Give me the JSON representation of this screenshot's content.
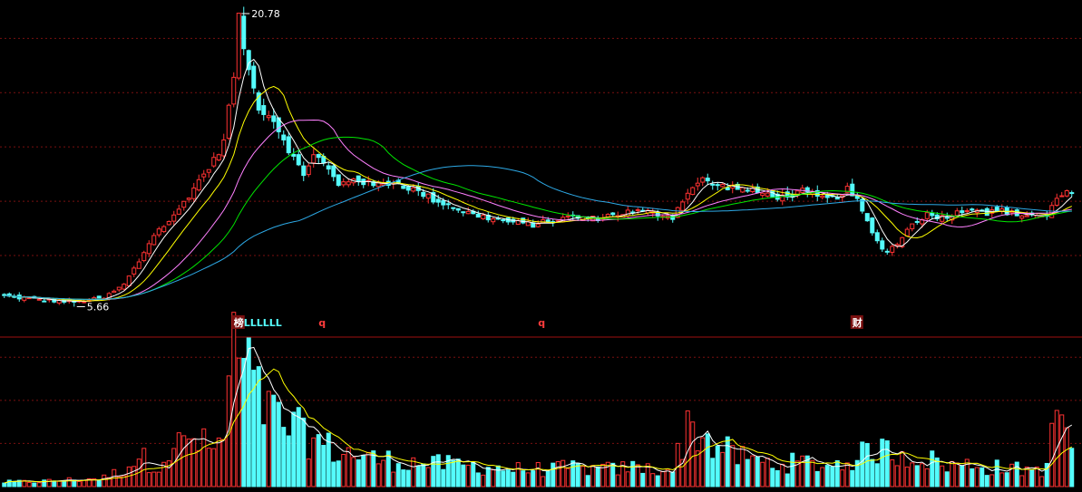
{
  "chart_data": {
    "type": "candlestick",
    "colors": {
      "background": "#000000",
      "up": "#ff3232",
      "down": "#54fcfc",
      "grid": "#7a1010",
      "separator": "#a01010",
      "ma_colors": [
        "#ffffff",
        "#ffff00",
        "#ff80ff",
        "#00e600",
        "#2da9e6"
      ],
      "marker_box": "#7a1010",
      "marker_text_red": "#ff3c3c",
      "marker_text_cyan": "#54fcfc"
    },
    "price_annotations": [
      {
        "label": "20.78",
        "value": 20.78,
        "index": 47
      },
      {
        "label": "5.66",
        "value": 5.66,
        "index": 14
      }
    ],
    "markers": [
      {
        "text": "榜",
        "index": 46,
        "boxed": true,
        "color": "red"
      },
      {
        "text": "LLLLLL",
        "index": 48,
        "boxed": false,
        "color": "cyan"
      },
      {
        "text": "q",
        "index": 63,
        "boxed": false,
        "color": "red"
      },
      {
        "text": "q",
        "index": 107,
        "boxed": false,
        "color": "red"
      },
      {
        "text": "财",
        "index": 170,
        "boxed": true,
        "color": "red"
      }
    ],
    "keypoints": [
      [
        0,
        6.2,
        5
      ],
      [
        8,
        6.0,
        6
      ],
      [
        14,
        5.9,
        8
      ],
      [
        20,
        6.1,
        10
      ],
      [
        24,
        6.8,
        20
      ],
      [
        27,
        8.0,
        35
      ],
      [
        30,
        9.4,
        25
      ],
      [
        34,
        10.3,
        45
      ],
      [
        38,
        11.8,
        55
      ],
      [
        42,
        13.2,
        40
      ],
      [
        44,
        14.2,
        60
      ],
      [
        46,
        17.6,
        160
      ],
      [
        47,
        20.5,
        150
      ],
      [
        49,
        17.8,
        130
      ],
      [
        51,
        16.0,
        100
      ],
      [
        54,
        15.3,
        80
      ],
      [
        57,
        13.8,
        70
      ],
      [
        60,
        12.4,
        60
      ],
      [
        62,
        13.6,
        55
      ],
      [
        65,
        12.7,
        45
      ],
      [
        67,
        11.9,
        40
      ],
      [
        70,
        12.3,
        38
      ],
      [
        74,
        11.9,
        32
      ],
      [
        78,
        12.1,
        30
      ],
      [
        82,
        11.7,
        28
      ],
      [
        86,
        11.2,
        26
      ],
      [
        90,
        10.8,
        25
      ],
      [
        94,
        10.4,
        24
      ],
      [
        98,
        10.2,
        22
      ],
      [
        102,
        10.0,
        20
      ],
      [
        106,
        9.9,
        20
      ],
      [
        110,
        10.1,
        20
      ],
      [
        114,
        10.3,
        22
      ],
      [
        118,
        10.2,
        20
      ],
      [
        122,
        10.4,
        20
      ],
      [
        126,
        10.6,
        22
      ],
      [
        130,
        10.5,
        20
      ],
      [
        134,
        10.3,
        20
      ],
      [
        137,
        11.6,
        70
      ],
      [
        140,
        12.2,
        60
      ],
      [
        143,
        11.9,
        45
      ],
      [
        147,
        11.8,
        35
      ],
      [
        152,
        11.5,
        28
      ],
      [
        156,
        11.3,
        26
      ],
      [
        160,
        11.6,
        28
      ],
      [
        163,
        11.3,
        26
      ],
      [
        166,
        11.2,
        24
      ],
      [
        169,
        11.7,
        30
      ],
      [
        171,
        11.1,
        32
      ],
      [
        173,
        10.0,
        40
      ],
      [
        175,
        9.0,
        44
      ],
      [
        177,
        8.5,
        40
      ],
      [
        180,
        9.2,
        38
      ],
      [
        182,
        10.0,
        35
      ],
      [
        185,
        10.4,
        32
      ],
      [
        188,
        10.3,
        26
      ],
      [
        191,
        10.5,
        24
      ],
      [
        194,
        10.8,
        26
      ],
      [
        197,
        10.5,
        22
      ],
      [
        200,
        10.6,
        22
      ],
      [
        203,
        10.4,
        20
      ],
      [
        206,
        10.4,
        20
      ],
      [
        209,
        10.3,
        20
      ],
      [
        211,
        11.3,
        90
      ],
      [
        213,
        11.7,
        70
      ],
      [
        214,
        11.4,
        45
      ]
    ],
    "n_bars": 215,
    "ma_periods": [
      5,
      10,
      20,
      30,
      60
    ],
    "volume_ma_periods": [
      5,
      10
    ],
    "ylim": [
      5.4,
      21.2
    ],
    "volume_ylim": [
      0,
      165
    ],
    "price_gridlines": [
      8.3,
      11.1,
      13.9,
      16.7,
      19.5
    ],
    "volume_gridlines": [
      50,
      100,
      150
    ]
  }
}
